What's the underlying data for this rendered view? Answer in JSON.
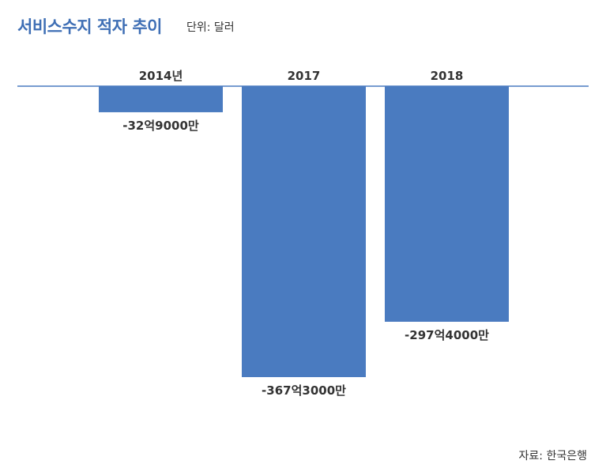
{
  "header": {
    "title": "서비스수지 적자 추이",
    "unit": "단위: 달러"
  },
  "footer": {
    "source": "자료: 한국은행"
  },
  "colors": {
    "bar": "#4a7bc0",
    "baseline": "#4a7bc0",
    "title": "#3f6fb5"
  },
  "chart_data": {
    "type": "bar",
    "categories": [
      "2014년",
      "2017",
      "2018"
    ],
    "values": [
      -32.9,
      -367.3,
      -297.4
    ],
    "value_labels": [
      "-32억9000만",
      "-367억3000만",
      "-297억4000만"
    ],
    "title": "서비스수지 적자 추이",
    "ylabel": "",
    "xlabel": "",
    "ylim": [
      -367.3,
      0
    ],
    "grid": false,
    "legend": "none"
  }
}
